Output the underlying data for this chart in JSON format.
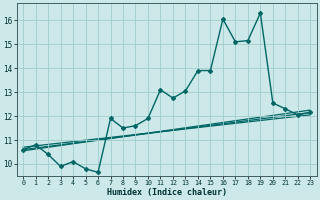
{
  "xlabel": "Humidex (Indice chaleur)",
  "bg_color": "#cce8e8",
  "grid_color": "#a0cccc",
  "line_color": "#006666",
  "xlim": [
    -0.5,
    23.5
  ],
  "ylim": [
    9.5,
    16.7
  ],
  "xticks": [
    0,
    1,
    2,
    3,
    4,
    5,
    6,
    7,
    8,
    9,
    10,
    11,
    12,
    13,
    14,
    15,
    16,
    17,
    18,
    19,
    20,
    21,
    22,
    23
  ],
  "yticks": [
    10,
    11,
    12,
    13,
    14,
    15,
    16
  ],
  "series_main": {
    "x": [
      0,
      1,
      2,
      3,
      4,
      5,
      6,
      7,
      8,
      9,
      10,
      11,
      12,
      13,
      14,
      15,
      16,
      17,
      18,
      19,
      20,
      21,
      22,
      23
    ],
    "y": [
      10.6,
      10.8,
      10.4,
      9.9,
      10.1,
      9.8,
      9.65,
      11.9,
      11.5,
      11.6,
      11.9,
      13.1,
      12.75,
      13.05,
      13.9,
      13.9,
      16.05,
      15.1,
      15.15,
      16.3,
      12.55,
      12.3,
      12.05,
      12.15
    ]
  },
  "regression_lines": [
    {
      "x0": 0,
      "y0": 10.6,
      "x1": 23,
      "y1": 12.15
    },
    {
      "x0": 0,
      "y0": 10.7,
      "x1": 23,
      "y1": 12.05
    },
    {
      "x0": 0,
      "y0": 10.55,
      "x1": 23,
      "y1": 12.25
    }
  ]
}
